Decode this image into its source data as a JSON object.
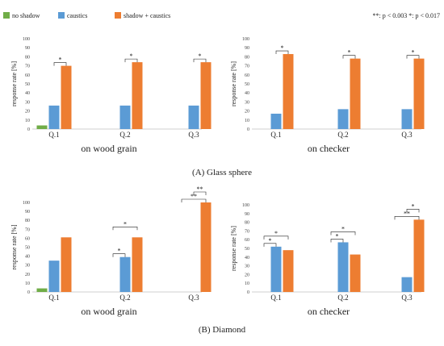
{
  "legend": {
    "items": [
      {
        "label": "no shadow",
        "color": "#70ad47"
      },
      {
        "label": "caustics",
        "color": "#5b9bd5"
      },
      {
        "label": "shadow + caustics",
        "color": "#ed7d31"
      }
    ],
    "significance_note": "**: p < 0.003  *: p < 0.017"
  },
  "captions": [
    "(A) Glass sphere",
    "(B) Diamond"
  ],
  "chart_data": [
    {
      "type": "bar",
      "panel": "A-left",
      "categories": [
        "Q.1",
        "Q.2",
        "Q.3"
      ],
      "series": [
        {
          "name": "no shadow",
          "values": [
            4,
            0,
            0
          ]
        },
        {
          "name": "caustics",
          "values": [
            26,
            26,
            26
          ]
        },
        {
          "name": "shadow + caustics",
          "values": [
            70,
            74,
            74
          ]
        }
      ],
      "xlabel": "on wood grain",
      "ylabel": "response rate [%]",
      "ylim": [
        0,
        100
      ],
      "yticks": [
        0,
        10,
        20,
        30,
        40,
        50,
        60,
        70,
        80,
        90,
        100
      ],
      "significance": [
        {
          "category": 0,
          "from": "caustics",
          "to": "shadow + caustics",
          "label": "*"
        },
        {
          "category": 1,
          "from": "caustics",
          "to": "shadow + caustics",
          "label": "*"
        },
        {
          "category": 2,
          "from": "caustics",
          "to": "shadow + caustics",
          "label": "*"
        }
      ]
    },
    {
      "type": "bar",
      "panel": "A-right",
      "categories": [
        "Q.1",
        "Q.2",
        "Q.3"
      ],
      "series": [
        {
          "name": "no shadow",
          "values": [
            0,
            0,
            0
          ]
        },
        {
          "name": "caustics",
          "values": [
            17,
            22,
            22
          ]
        },
        {
          "name": "shadow + caustics",
          "values": [
            83,
            78,
            78
          ]
        }
      ],
      "xlabel": "on checker",
      "ylabel": "response rate [%]",
      "ylim": [
        0,
        100
      ],
      "yticks": [
        0,
        10,
        20,
        30,
        40,
        50,
        60,
        70,
        80,
        90,
        100
      ],
      "significance": [
        {
          "category": 0,
          "from": "caustics",
          "to": "shadow + caustics",
          "label": "*"
        },
        {
          "category": 1,
          "from": "caustics",
          "to": "shadow + caustics",
          "label": "*"
        },
        {
          "category": 2,
          "from": "caustics",
          "to": "shadow + caustics",
          "label": "*"
        }
      ]
    },
    {
      "type": "bar",
      "panel": "B-left",
      "categories": [
        "Q.1",
        "Q.2",
        "Q.3"
      ],
      "series": [
        {
          "name": "no shadow",
          "values": [
            4,
            0,
            0
          ]
        },
        {
          "name": "caustics",
          "values": [
            35,
            39,
            0
          ]
        },
        {
          "name": "shadow + caustics",
          "values": [
            61,
            61,
            100
          ]
        }
      ],
      "xlabel": "on wood grain",
      "ylabel": "response rate [%]",
      "ylim": [
        0,
        100
      ],
      "yticks": [
        0,
        10,
        20,
        30,
        40,
        50,
        60,
        70,
        80,
        90,
        100
      ],
      "significance": [
        {
          "category": 1,
          "from": "no shadow",
          "to": "caustics",
          "label": "*"
        },
        {
          "category": 1,
          "from": "no shadow",
          "to": "shadow + caustics",
          "label": "*"
        },
        {
          "category": 2,
          "from": "no shadow",
          "to": "shadow + caustics",
          "label": "**"
        },
        {
          "category": 2,
          "from": "caustics",
          "to": "shadow + caustics",
          "label": "**"
        }
      ]
    },
    {
      "type": "bar",
      "panel": "B-right",
      "categories": [
        "Q.1",
        "Q.2",
        "Q.3"
      ],
      "series": [
        {
          "name": "no shadow",
          "values": [
            0,
            0,
            0
          ]
        },
        {
          "name": "caustics",
          "values": [
            52,
            57,
            17
          ]
        },
        {
          "name": "shadow + caustics",
          "values": [
            48,
            43,
            83
          ]
        }
      ],
      "xlabel": "on checker",
      "ylabel": "response rate [%]",
      "ylim": [
        0,
        100
      ],
      "yticks": [
        0,
        10,
        20,
        30,
        40,
        50,
        60,
        70,
        80,
        90,
        100
      ],
      "significance": [
        {
          "category": 0,
          "from": "no shadow",
          "to": "caustics",
          "label": "*"
        },
        {
          "category": 0,
          "from": "no shadow",
          "to": "shadow + caustics",
          "label": "*"
        },
        {
          "category": 1,
          "from": "no shadow",
          "to": "caustics",
          "label": "*"
        },
        {
          "category": 1,
          "from": "no shadow",
          "to": "shadow + caustics",
          "label": "*"
        },
        {
          "category": 2,
          "from": "no shadow",
          "to": "shadow + caustics",
          "label": "**"
        },
        {
          "category": 2,
          "from": "caustics",
          "to": "shadow + caustics",
          "label": "*"
        }
      ]
    }
  ]
}
